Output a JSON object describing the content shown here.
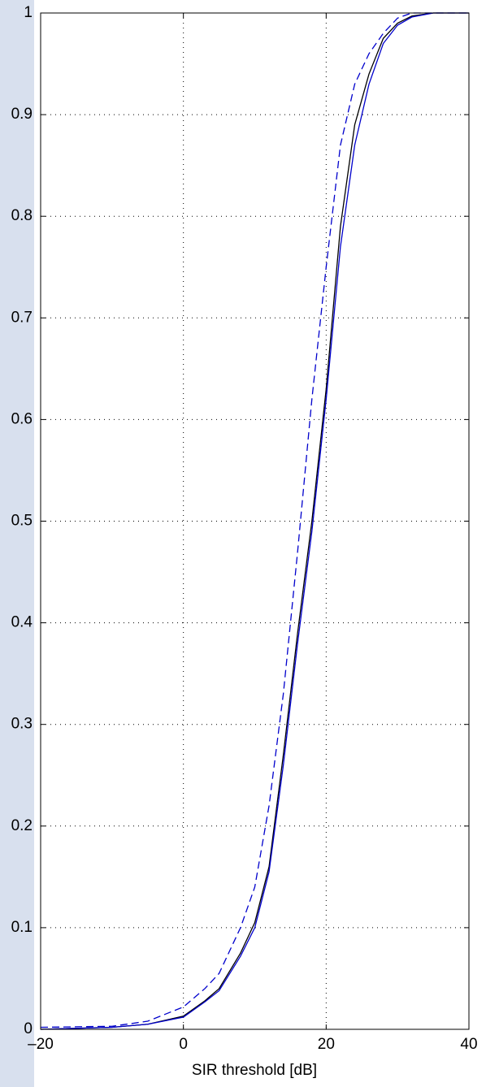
{
  "chart_data": {
    "type": "line",
    "xlabel": "SIR threshold [dB]",
    "x": [
      -20,
      -10,
      -5,
      0,
      3,
      5,
      8,
      10,
      12,
      14,
      16,
      18,
      20,
      22,
      24,
      26,
      28,
      30,
      32,
      35,
      40
    ],
    "series": [
      {
        "color": "#000000",
        "linestyle": "solid",
        "values": [
          0,
          0.002,
          0.005,
          0.013,
          0.028,
          0.04,
          0.075,
          0.105,
          0.16,
          0.27,
          0.39,
          0.5,
          0.63,
          0.79,
          0.89,
          0.94,
          0.975,
          0.99,
          0.997,
          1,
          1
        ]
      },
      {
        "color": "#0000cc",
        "linestyle": "solid",
        "values": [
          0,
          0.002,
          0.005,
          0.012,
          0.027,
          0.038,
          0.072,
          0.1,
          0.155,
          0.26,
          0.38,
          0.49,
          0.62,
          0.77,
          0.87,
          0.93,
          0.97,
          0.988,
          0.996,
          1,
          1
        ]
      },
      {
        "color": "#0000cc",
        "linestyle": "dashed",
        "values": [
          0.002,
          0.003,
          0.008,
          0.022,
          0.04,
          0.055,
          0.1,
          0.14,
          0.22,
          0.33,
          0.47,
          0.62,
          0.75,
          0.87,
          0.93,
          0.96,
          0.98,
          0.995,
          1,
          1,
          1
        ]
      }
    ],
    "xlim": [
      -20,
      40
    ],
    "xticks": [
      {
        "value": -20,
        "label": "–20"
      },
      0,
      20,
      40
    ],
    "ylim": [
      0,
      1
    ],
    "yticks": [
      0,
      0.1,
      0.2,
      0.3,
      0.4,
      0.5,
      0.6,
      0.7,
      0.8,
      0.9,
      1
    ],
    "grid": true
  }
}
